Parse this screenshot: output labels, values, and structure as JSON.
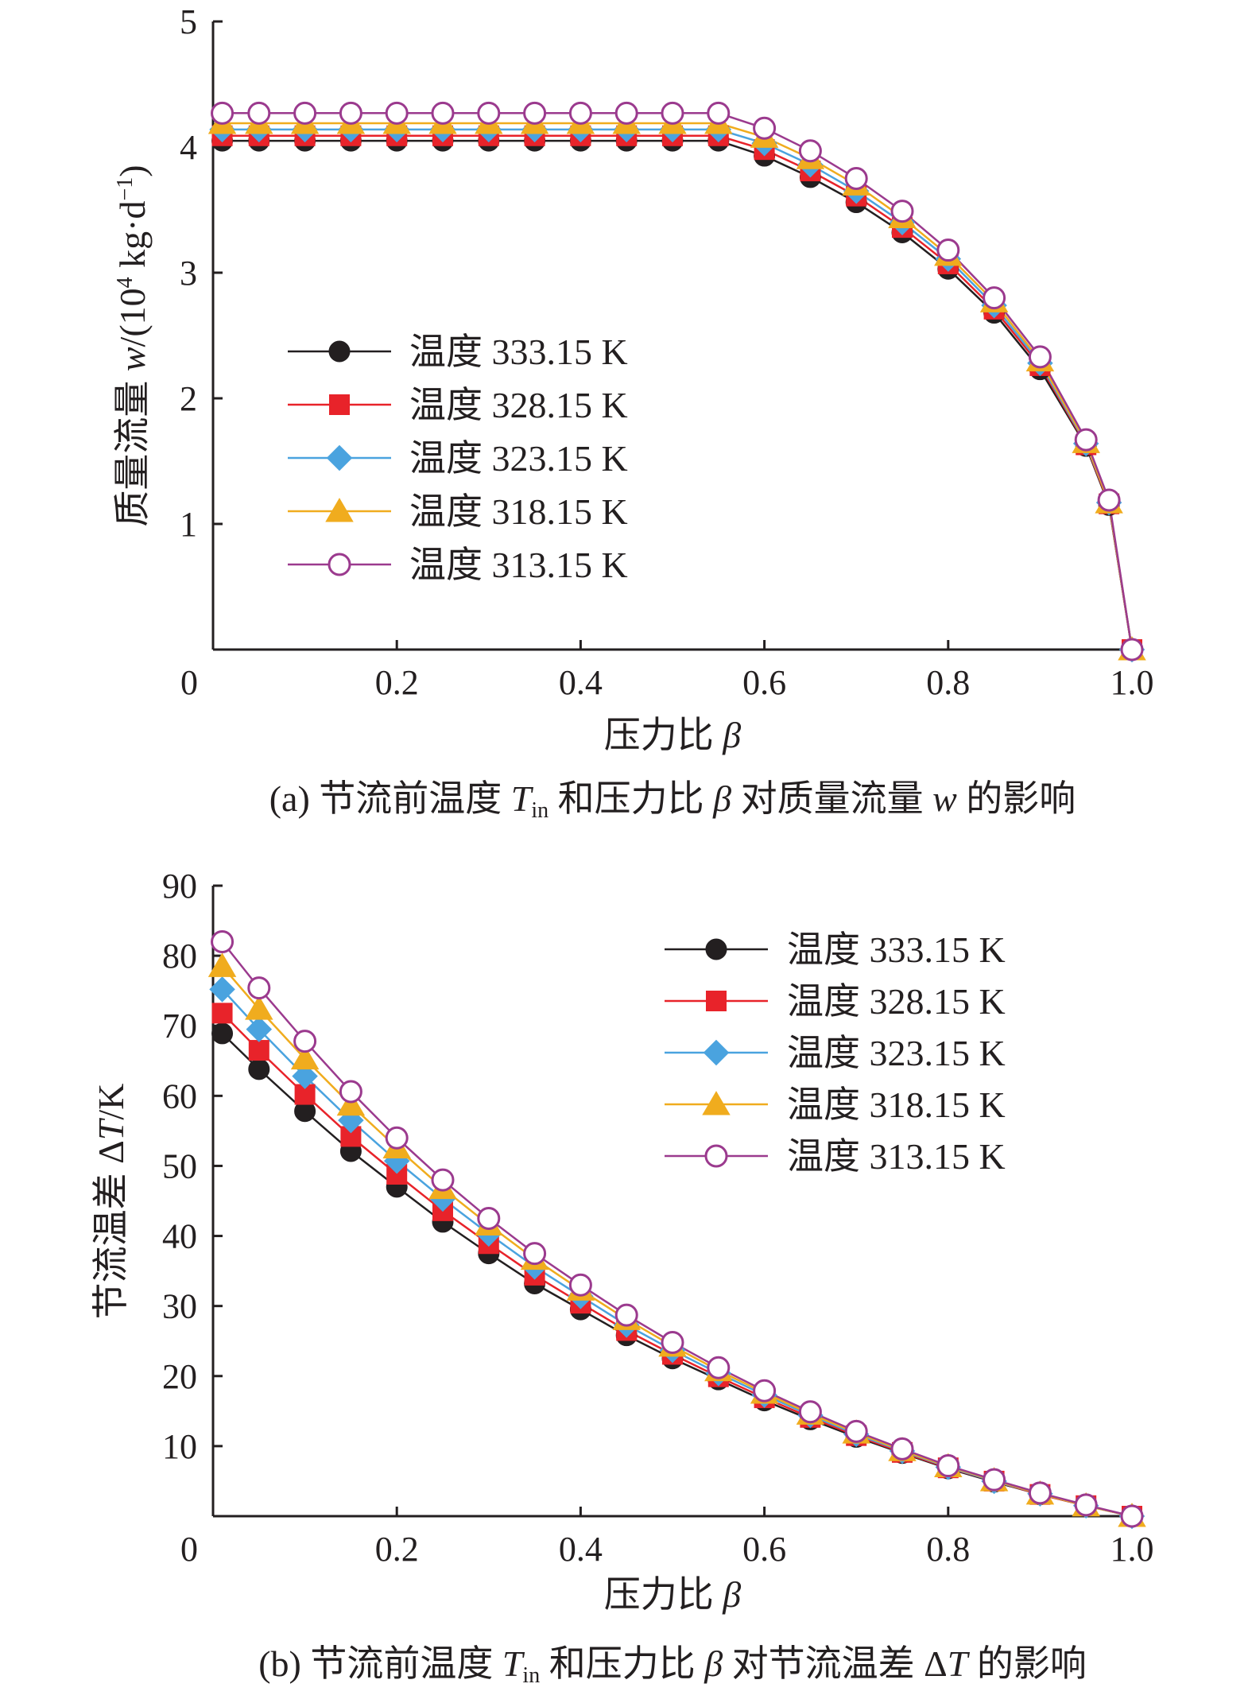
{
  "legend_labels": [
    "温度 333.15 K",
    "温度 328.15 K",
    "温度 323.15 K",
    "温度 318.15 K",
    "温度 313.15 K"
  ],
  "series_colors": [
    "#231f20",
    "#e8232a",
    "#4aa3df",
    "#f0ac1e",
    "#9b3a8e"
  ],
  "marker_shapes": [
    "circle-filled",
    "square",
    "diamond",
    "triangle",
    "circle-open"
  ],
  "chart_data": [
    {
      "type": "line",
      "panel": "a",
      "title": "",
      "xlabel_text": "压力比",
      "xlabel_symbol": "β",
      "ylabel_text": "质量流量",
      "ylabel_symbol": "w",
      "ylabel_unit": "/(10",
      "ylabel_unit_exp": "4",
      "ylabel_unit_rest": " kg·d",
      "ylabel_unit_exp2": "−1",
      "ylabel_unit_close": ")",
      "xlim": [
        0,
        1.0
      ],
      "ylim": [
        0,
        5
      ],
      "xticks": [
        {
          "value": 0,
          "label": "0"
        },
        {
          "value": 0.2,
          "label": "0.2"
        },
        {
          "value": 0.4,
          "label": "0.4"
        },
        {
          "value": 0.6,
          "label": "0.6"
        },
        {
          "value": 0.8,
          "label": "0.8"
        },
        {
          "value": 1.0,
          "label": "1.0"
        }
      ],
      "yticks": [
        {
          "value": 1,
          "label": "1"
        },
        {
          "value": 2,
          "label": "2"
        },
        {
          "value": 3,
          "label": "3"
        },
        {
          "value": 4,
          "label": "4"
        },
        {
          "value": 5,
          "label": "5"
        }
      ],
      "legend_position": "center-left",
      "x": [
        0.01,
        0.05,
        0.1,
        0.15,
        0.2,
        0.25,
        0.3,
        0.35,
        0.4,
        0.45,
        0.5,
        0.55,
        0.6,
        0.65,
        0.7,
        0.75,
        0.8,
        0.85,
        0.9,
        0.95,
        0.975,
        1.0
      ],
      "series": [
        {
          "name": "温度 333.15 K",
          "values": [
            4.05,
            4.05,
            4.05,
            4.05,
            4.05,
            4.05,
            4.05,
            4.05,
            4.05,
            4.05,
            4.05,
            4.05,
            3.93,
            3.76,
            3.56,
            3.32,
            3.03,
            2.68,
            2.23,
            1.62,
            1.15,
            0.0
          ]
        },
        {
          "name": "温度 328.15 K",
          "values": [
            4.09,
            4.09,
            4.09,
            4.09,
            4.09,
            4.09,
            4.09,
            4.09,
            4.09,
            4.09,
            4.09,
            4.09,
            3.98,
            3.81,
            3.61,
            3.36,
            3.07,
            2.71,
            2.26,
            1.63,
            1.16,
            0.0
          ]
        },
        {
          "name": "温度 323.15 K",
          "values": [
            4.14,
            4.14,
            4.14,
            4.14,
            4.14,
            4.14,
            4.14,
            4.14,
            4.14,
            4.14,
            4.14,
            4.14,
            4.03,
            3.86,
            3.65,
            3.4,
            3.11,
            2.74,
            2.28,
            1.64,
            1.17,
            0.0
          ]
        },
        {
          "name": "温度 318.15 K",
          "values": [
            4.19,
            4.19,
            4.19,
            4.19,
            4.19,
            4.19,
            4.19,
            4.19,
            4.19,
            4.19,
            4.19,
            4.19,
            4.08,
            3.91,
            3.7,
            3.44,
            3.14,
            2.77,
            2.3,
            1.65,
            1.17,
            0.0
          ]
        },
        {
          "name": "温度 313.15 K",
          "values": [
            4.27,
            4.27,
            4.27,
            4.27,
            4.27,
            4.27,
            4.27,
            4.27,
            4.27,
            4.27,
            4.27,
            4.27,
            4.15,
            3.97,
            3.75,
            3.49,
            3.18,
            2.8,
            2.33,
            1.67,
            1.19,
            0.0
          ]
        }
      ],
      "caption": {
        "prefix": "(a) 节流前温度 ",
        "T": "T",
        "sub": "in",
        "middle": " 和压力比 ",
        "beta": "β",
        "middle2": " 对质量流量 ",
        "w": "w",
        "suffix": " 的影响"
      }
    },
    {
      "type": "line",
      "panel": "b",
      "title": "",
      "xlabel_text": "压力比",
      "xlabel_symbol": "β",
      "ylabel_text": "节流温差 Δ",
      "ylabel_symbol": "T",
      "ylabel_unit": "/K",
      "xlim": [
        0,
        1.0
      ],
      "ylim": [
        0,
        90
      ],
      "xticks": [
        {
          "value": 0,
          "label": "0"
        },
        {
          "value": 0.2,
          "label": "0.2"
        },
        {
          "value": 0.4,
          "label": "0.4"
        },
        {
          "value": 0.6,
          "label": "0.6"
        },
        {
          "value": 0.8,
          "label": "0.8"
        },
        {
          "value": 1.0,
          "label": "1.0"
        }
      ],
      "yticks": [
        {
          "value": 10,
          "label": "10"
        },
        {
          "value": 20,
          "label": "20"
        },
        {
          "value": 30,
          "label": "30"
        },
        {
          "value": 40,
          "label": "40"
        },
        {
          "value": 50,
          "label": "50"
        },
        {
          "value": 60,
          "label": "60"
        },
        {
          "value": 70,
          "label": "70"
        },
        {
          "value": 80,
          "label": "80"
        },
        {
          "value": 90,
          "label": "90"
        }
      ],
      "legend_position": "top-right",
      "x": [
        0.01,
        0.05,
        0.1,
        0.15,
        0.2,
        0.25,
        0.3,
        0.35,
        0.4,
        0.45,
        0.5,
        0.55,
        0.6,
        0.65,
        0.7,
        0.75,
        0.8,
        0.85,
        0.9,
        0.95,
        1.0
      ],
      "series": [
        {
          "name": "温度 333.15 K",
          "values": [
            68.9,
            63.8,
            57.8,
            52.1,
            47.0,
            42.0,
            37.5,
            33.2,
            29.5,
            25.8,
            22.5,
            19.5,
            16.5,
            13.8,
            11.3,
            9.0,
            6.8,
            4.9,
            3.1,
            1.5,
            0.0
          ]
        },
        {
          "name": "温度 328.15 K",
          "values": [
            71.8,
            66.5,
            60.2,
            54.2,
            48.8,
            43.6,
            38.9,
            34.4,
            30.4,
            26.5,
            23.1,
            19.9,
            16.9,
            14.1,
            11.5,
            9.1,
            6.9,
            5.0,
            3.1,
            1.5,
            0.0
          ]
        },
        {
          "name": "温度 323.15 K",
          "values": [
            75.2,
            69.5,
            62.8,
            56.5,
            50.7,
            45.3,
            40.3,
            35.6,
            31.4,
            27.3,
            23.7,
            20.4,
            17.3,
            14.4,
            11.7,
            9.3,
            7.0,
            5.0,
            3.2,
            1.5,
            0.0
          ]
        },
        {
          "name": "温度 318.15 K",
          "values": [
            78.5,
            72.4,
            65.3,
            58.7,
            52.6,
            46.8,
            41.6,
            36.7,
            32.3,
            28.1,
            24.3,
            20.8,
            17.6,
            14.6,
            11.9,
            9.4,
            7.1,
            5.1,
            3.2,
            1.5,
            0.0
          ]
        },
        {
          "name": "温度 313.15 K",
          "values": [
            82.0,
            75.4,
            67.8,
            60.6,
            54.0,
            48.0,
            42.5,
            37.5,
            33.0,
            28.7,
            24.8,
            21.2,
            17.9,
            14.9,
            12.1,
            9.6,
            7.2,
            5.2,
            3.3,
            1.6,
            0.0
          ]
        }
      ],
      "caption": {
        "prefix": "(b) 节流前温度 ",
        "T": "T",
        "sub": "in",
        "middle": " 和压力比 ",
        "beta": "β",
        "middle2": " 对节流温差 Δ",
        "w": "T",
        "suffix": " 的影响"
      }
    }
  ]
}
